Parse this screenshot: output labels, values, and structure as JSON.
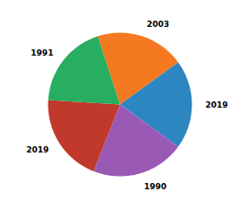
{
  "chart_data": {
    "type": "pie",
    "categories": [
      "2003",
      "2019",
      "1990",
      "2019",
      "1991"
    ],
    "values": [
      20,
      20,
      21,
      20,
      19
    ],
    "colors": [
      "#F47920",
      "#2E86C1",
      "#9B59B6",
      "#C0392B",
      "#27AE60"
    ]
  }
}
